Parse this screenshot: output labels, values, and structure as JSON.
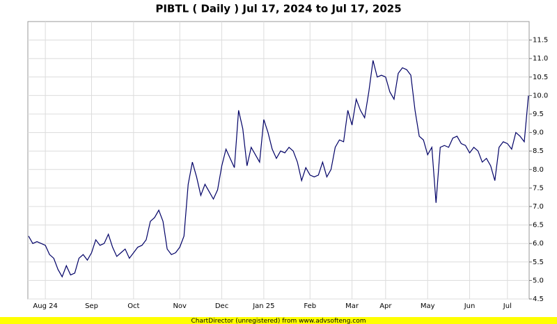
{
  "chart_data": {
    "type": "line",
    "title": "PIBTL ( Daily ) Jul 17, 2024 to Jul 17, 2025",
    "footer": "ChartDirector (unregistered) from www.advsofteng.com",
    "categories": [
      null,
      null,
      null,
      null,
      "Aug 24",
      null,
      null,
      null,
      null,
      null,
      null,
      null,
      null,
      null,
      null,
      "Sep",
      null,
      null,
      null,
      null,
      null,
      null,
      null,
      null,
      null,
      "Oct",
      null,
      null,
      null,
      null,
      null,
      null,
      null,
      null,
      null,
      null,
      "Nov",
      null,
      null,
      null,
      null,
      null,
      null,
      null,
      null,
      null,
      "Dec",
      null,
      null,
      null,
      null,
      null,
      null,
      null,
      null,
      null,
      "Jan 25",
      null,
      null,
      null,
      null,
      null,
      null,
      null,
      null,
      null,
      null,
      "Feb",
      null,
      null,
      null,
      null,
      null,
      null,
      null,
      null,
      null,
      "Mar",
      null,
      null,
      null,
      null,
      null,
      null,
      null,
      "Apr",
      null,
      null,
      null,
      null,
      null,
      null,
      null,
      null,
      null,
      "May",
      null,
      null,
      null,
      null,
      null,
      null,
      null,
      null,
      null,
      "Jun",
      null,
      null,
      null,
      null,
      null,
      null,
      null,
      null,
      "Jul",
      null,
      null,
      null,
      null,
      null
    ],
    "series": [
      {
        "color": "#000066",
        "values": [
          6.2,
          6.0,
          6.05,
          6.0,
          5.95,
          5.7,
          5.6,
          5.3,
          5.1,
          5.4,
          5.15,
          5.2,
          5.6,
          5.7,
          5.55,
          5.75,
          6.1,
          5.95,
          6.0,
          6.25,
          5.9,
          5.65,
          5.75,
          5.85,
          5.6,
          5.75,
          5.9,
          5.95,
          6.1,
          6.6,
          6.7,
          6.9,
          6.6,
          5.85,
          5.7,
          5.75,
          5.9,
          6.2,
          7.6,
          8.2,
          7.8,
          7.3,
          7.6,
          7.4,
          7.2,
          7.45,
          8.1,
          8.55,
          8.3,
          8.05,
          9.6,
          9.1,
          8.1,
          8.6,
          8.4,
          8.2,
          9.35,
          9.0,
          8.55,
          8.3,
          8.5,
          8.45,
          8.6,
          8.5,
          8.2,
          7.7,
          8.05,
          7.85,
          7.8,
          7.85,
          8.2,
          7.8,
          8.0,
          8.6,
          8.8,
          8.75,
          9.6,
          9.2,
          9.9,
          9.6,
          9.4,
          10.1,
          10.95,
          10.5,
          10.55,
          10.5,
          10.1,
          9.9,
          10.6,
          10.75,
          10.7,
          10.55,
          9.6,
          8.9,
          8.8,
          8.4,
          8.6,
          7.1,
          8.6,
          8.65,
          8.6,
          8.85,
          8.9,
          8.7,
          8.65,
          8.45,
          8.6,
          8.5,
          8.2,
          8.3,
          8.1,
          7.7,
          8.6,
          8.75,
          8.7,
          8.55,
          9.0,
          8.9,
          8.75,
          10.0
        ]
      }
    ],
    "ylim": [
      4.5,
      12.0
    ],
    "yticks": [
      4.5,
      {
        "value": 5,
        "label": "5.0"
      },
      5.5,
      {
        "value": 6,
        "label": "6.0"
      },
      6.5,
      {
        "value": 7,
        "label": "7.0"
      },
      7.5,
      {
        "value": 8,
        "label": "8.0"
      },
      8.5,
      {
        "value": 9,
        "label": "9.0"
      },
      9.5,
      {
        "value": 10,
        "label": "10.0"
      },
      10.5,
      {
        "value": 11,
        "label": "11.0"
      },
      11.5
    ],
    "grid": true
  }
}
